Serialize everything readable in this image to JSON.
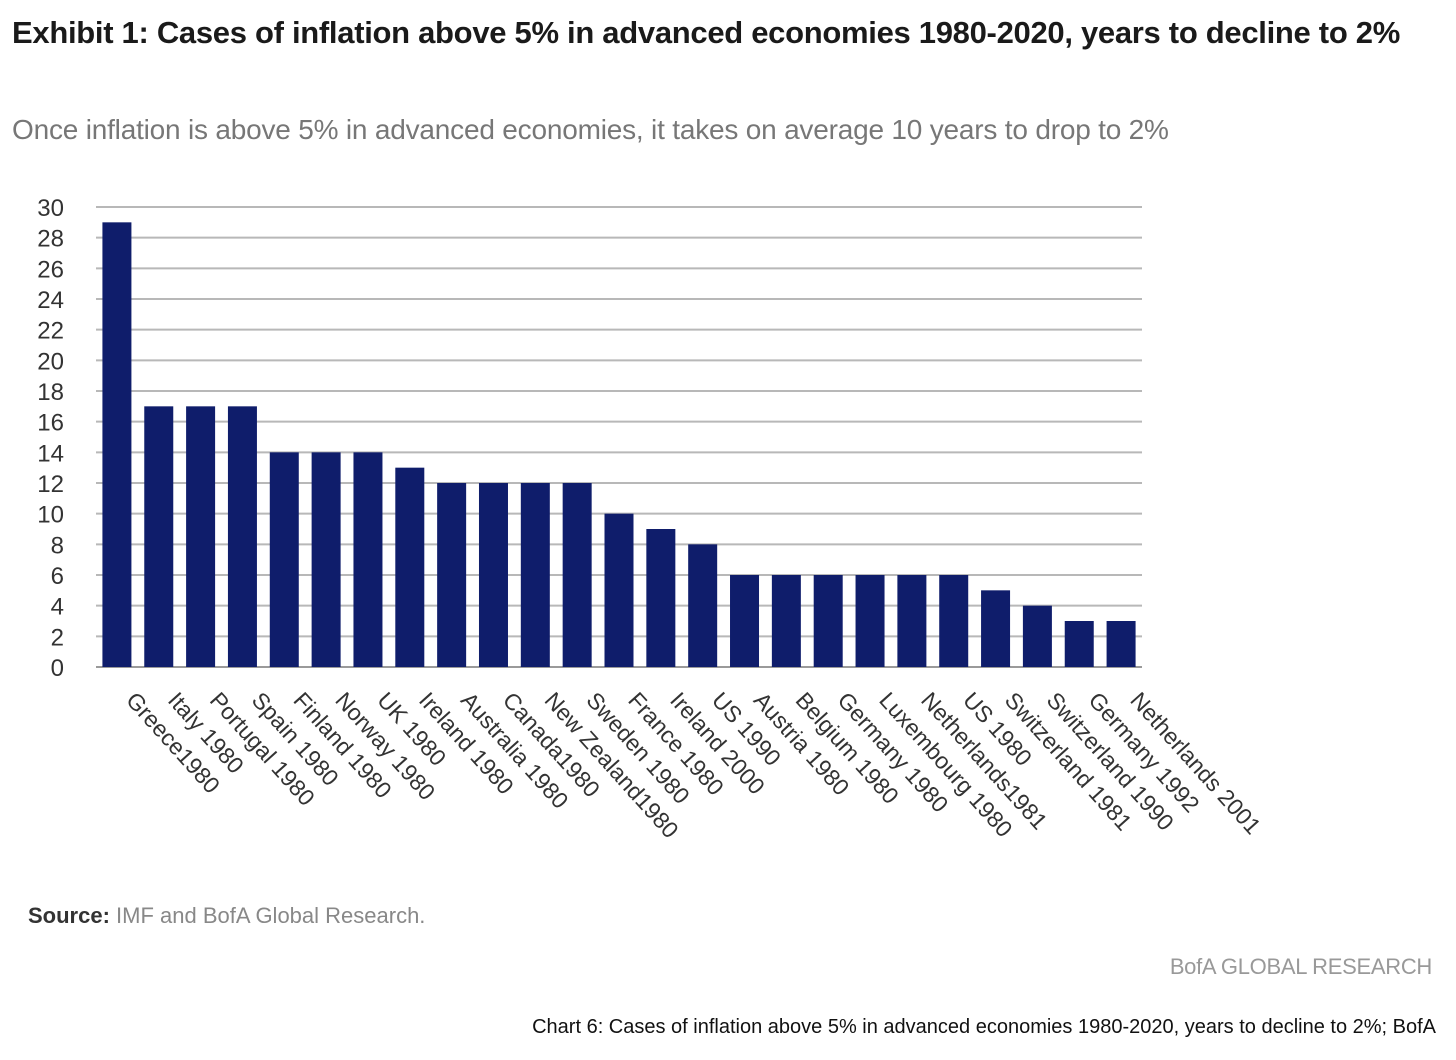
{
  "header": {
    "title": "Exhibit 1: Cases of inflation above 5% in advanced economies 1980-2020, years to decline to 2%",
    "subtitle": "Once inflation is above 5% in advanced economies, it takes on average 10 years to drop to 2%"
  },
  "footer": {
    "source_label": "Source:",
    "source_text": "IMF and BofA Global Research.",
    "brand": "BofA GLOBAL RESEARCH",
    "caption": "Chart 6: Cases of inflation above 5% in advanced economies 1980-2020, years to decline to 2%; BofA"
  },
  "chart_data": {
    "type": "bar",
    "title": "",
    "xlabel": "",
    "ylabel": "",
    "ylim": [
      0,
      30
    ],
    "yticks": [
      0,
      2,
      4,
      6,
      8,
      10,
      12,
      14,
      16,
      18,
      20,
      22,
      24,
      26,
      28,
      30
    ],
    "grid": true,
    "bar_color": "#0f1d6b",
    "categories": [
      "Greece1980",
      "Italy 1980",
      "Portugal 1980",
      "Spain 1980",
      "Finland 1980",
      "Norway 1980",
      "UK 1980",
      "Ireland 1980",
      "Australia 1980",
      "Canada1980",
      "New Zealand1980",
      "Sweden 1980",
      "France 1980",
      "Ireland 2000",
      "US 1990",
      "Austria 1980",
      "Belgium 1980",
      "Germany 1980",
      "Luxembourg 1980",
      "Netherlands1981",
      "US 1980",
      "Switzerland 1981",
      "Switzerland 1990",
      "Germany 1992",
      "Netherlands 2001"
    ],
    "values": [
      29,
      17,
      17,
      17,
      14,
      14,
      14,
      13,
      12,
      12,
      12,
      12,
      10,
      9,
      8,
      6,
      6,
      6,
      6,
      6,
      6,
      5,
      4,
      3,
      3
    ]
  }
}
